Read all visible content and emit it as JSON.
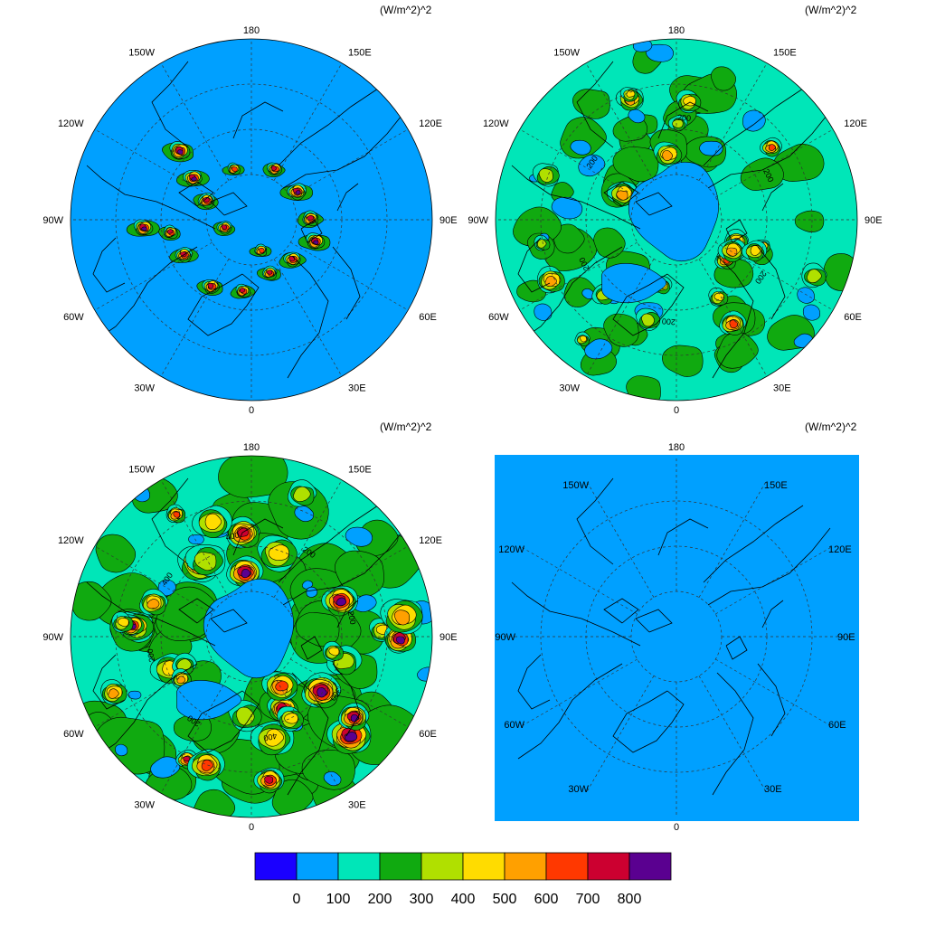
{
  "colors": {
    "levels": [
      "#1a00ff",
      "#00a0ff",
      "#00e6b8",
      "#10aa10",
      "#b0e000",
      "#ffdc00",
      "#ffa000",
      "#ff3800",
      "#cc0030",
      "#5a0090"
    ],
    "ocean": "#00a0ff",
    "coast": "#000000"
  },
  "colorbar": {
    "labels": [
      "0",
      "100",
      "200",
      "300",
      "400",
      "500",
      "600",
      "700",
      "800"
    ]
  },
  "panels": [
    {
      "units": "(W/m^2)^2",
      "shape": "circle",
      "intensity": "arctic-ring",
      "lon_labels": [
        "180",
        "150E",
        "120E",
        "90E",
        "60E",
        "30E",
        "0",
        "30W",
        "60W",
        "90W",
        "120W",
        "150W"
      ],
      "contour_labels": []
    },
    {
      "units": "(W/m^2)^2",
      "shape": "circle",
      "intensity": "broad",
      "lon_labels": [
        "180",
        "150E",
        "120E",
        "90E",
        "60E",
        "30E",
        "0",
        "30W",
        "60W",
        "90W",
        "120W",
        "150W"
      ],
      "contour_labels": [
        "200",
        "200",
        "200",
        "200",
        "200",
        "200"
      ]
    },
    {
      "units": "(W/m^2)^2",
      "shape": "circle",
      "intensity": "strong",
      "lon_labels": [
        "180",
        "150E",
        "120E",
        "90E",
        "60E",
        "30E",
        "0",
        "30W",
        "60W",
        "90W",
        "120W",
        "150W"
      ],
      "contour_labels": [
        "300",
        "400",
        "200",
        "200",
        "400",
        "400",
        "200",
        "200"
      ]
    },
    {
      "units": "(W/m^2)^2",
      "shape": "square",
      "intensity": "none",
      "lon_labels": [
        "180",
        "150E",
        "120E",
        "90E",
        "60E",
        "30E",
        "0",
        "30W",
        "60W",
        "90W",
        "120W",
        "150W"
      ],
      "contour_labels": []
    }
  ]
}
